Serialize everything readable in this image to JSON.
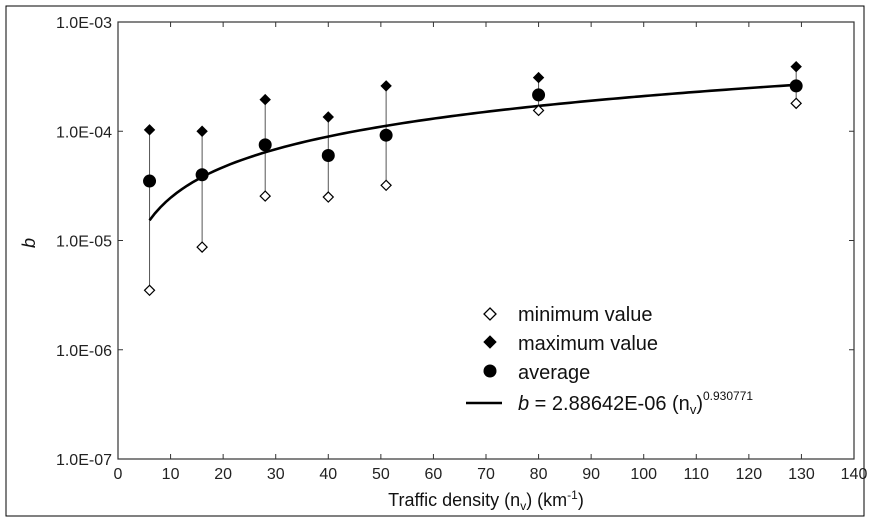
{
  "chart_data": {
    "type": "scatter",
    "xlabel": "Traffic density (n",
    "xlabel_sub": "v",
    "xlabel_mid": ") (km",
    "xlabel_sup": "-1",
    "xlabel_end": ")",
    "ylabel": "b",
    "x_ticks": [
      "0",
      "10",
      "20",
      "30",
      "40",
      "50",
      "60",
      "70",
      "80",
      "90",
      "100",
      "110",
      "120",
      "130",
      "140"
    ],
    "y_ticks": [
      "1.0E-07",
      "1.0E-06",
      "1.0E-05",
      "1.0E-04",
      "1.0E-03"
    ],
    "xlim": [
      0,
      140
    ],
    "ylim": [
      1e-07,
      0.001
    ],
    "y_scale": "log",
    "grid": false,
    "legend_position": "bottom-right",
    "x": [
      6,
      16,
      28,
      40,
      51,
      80,
      129
    ],
    "series": [
      {
        "name": "minimum value",
        "marker": "open-diamond",
        "values": [
          3.5e-06,
          8.7e-06,
          2.55e-05,
          2.5e-05,
          3.2e-05,
          0.000155,
          0.00018
        ]
      },
      {
        "name": "maximum value",
        "marker": "filled-diamond",
        "values": [
          0.000103,
          0.0001,
          0.000195,
          0.000135,
          0.00026,
          0.00031,
          0.00039
        ]
      },
      {
        "name": "average",
        "marker": "filled-circle",
        "values": [
          3.5e-05,
          4e-05,
          7.5e-05,
          6e-05,
          9.2e-05,
          0.000215,
          0.00026
        ]
      }
    ],
    "fit": {
      "name_italic": "b",
      "name_main": " = 2.88642E-06 (n",
      "name_sub": "v",
      "name_close": ")",
      "name_sup": "0.930771",
      "coefficient": 2.88642e-06,
      "exponent": 0.930771,
      "x_range": [
        6,
        129
      ]
    },
    "colors": {
      "marker": "#000000",
      "line": "#000000",
      "axis": "#333333"
    }
  }
}
